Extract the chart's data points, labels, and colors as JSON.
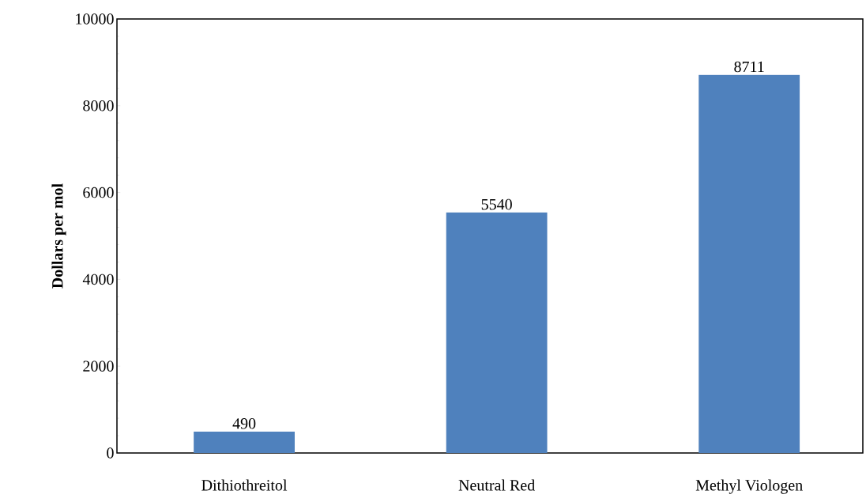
{
  "chart_data": {
    "type": "bar",
    "ylabel": "Dollars per mol",
    "categories": [
      "Dithiothreitol",
      "Neutral Red",
      "Methyl Viologen"
    ],
    "values": [
      490,
      5540,
      8711
    ],
    "color": "#4f81bd",
    "ylim": [
      0,
      10000
    ],
    "yticks": [
      0,
      2000,
      4000,
      6000,
      8000,
      10000
    ],
    "data_labels": true,
    "grid": false
  }
}
